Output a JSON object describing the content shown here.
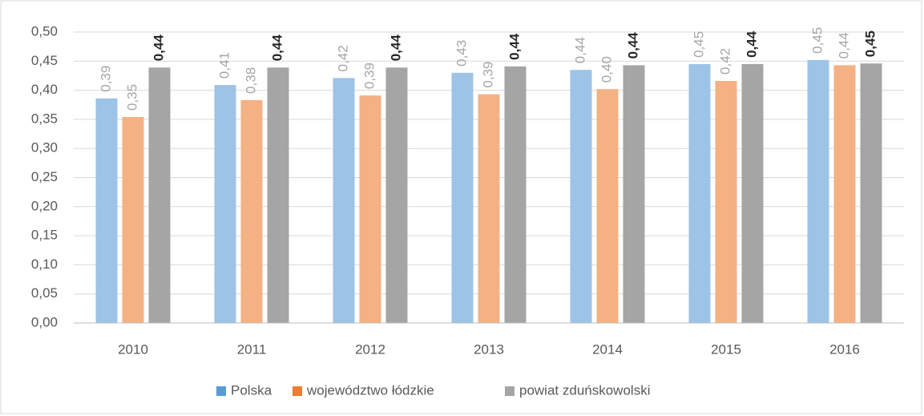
{
  "chart_data": {
    "type": "bar",
    "categories": [
      "2010",
      "2011",
      "2012",
      "2013",
      "2014",
      "2015",
      "2016"
    ],
    "series": [
      {
        "name": "Polska",
        "color": "#9dc3e6",
        "legend_color": "#5b9bd5",
        "values": [
          0.386,
          0.409,
          0.421,
          0.43,
          0.435,
          0.445,
          0.452
        ],
        "value_labels": [
          "0,39",
          "0,41",
          "0,42",
          "0,43",
          "0,44",
          "0,45",
          "0,45"
        ]
      },
      {
        "name": "województwo łódzkie",
        "color": "#f4b183",
        "legend_color": "#ed7d31",
        "values": [
          0.354,
          0.383,
          0.391,
          0.393,
          0.402,
          0.416,
          0.443
        ],
        "value_labels": [
          "0,35",
          "0,38",
          "0,39",
          "0,39",
          "0,40",
          "0,42",
          "0,44"
        ]
      },
      {
        "name": "powiat zduńskowolski",
        "color": "#a5a5a5",
        "legend_color": "#a5a5a5",
        "bold_labels": true,
        "values": [
          0.439,
          0.439,
          0.439,
          0.441,
          0.443,
          0.445,
          0.446
        ],
        "value_labels": [
          "0,44",
          "0,44",
          "0,44",
          "0,44",
          "0,44",
          "0,44",
          "0,45"
        ]
      }
    ],
    "ylim": [
      0,
      0.5
    ],
    "yticks": [
      {
        "value": 0,
        "label": "0,00"
      },
      {
        "value": 0.05,
        "label": "0,05"
      },
      {
        "value": 0.1,
        "label": "0,10"
      },
      {
        "value": 0.15,
        "label": "0,15"
      },
      {
        "value": 0.2,
        "label": "0,20"
      },
      {
        "value": 0.25,
        "label": "0,25"
      },
      {
        "value": 0.3,
        "label": "0,30"
      },
      {
        "value": 0.35,
        "label": "0,35"
      },
      {
        "value": 0.4,
        "label": "0,40"
      },
      {
        "value": 0.45,
        "label": "0,45"
      },
      {
        "value": 0.5,
        "label": "0,50"
      }
    ],
    "grid": true,
    "legend": "bottom"
  }
}
